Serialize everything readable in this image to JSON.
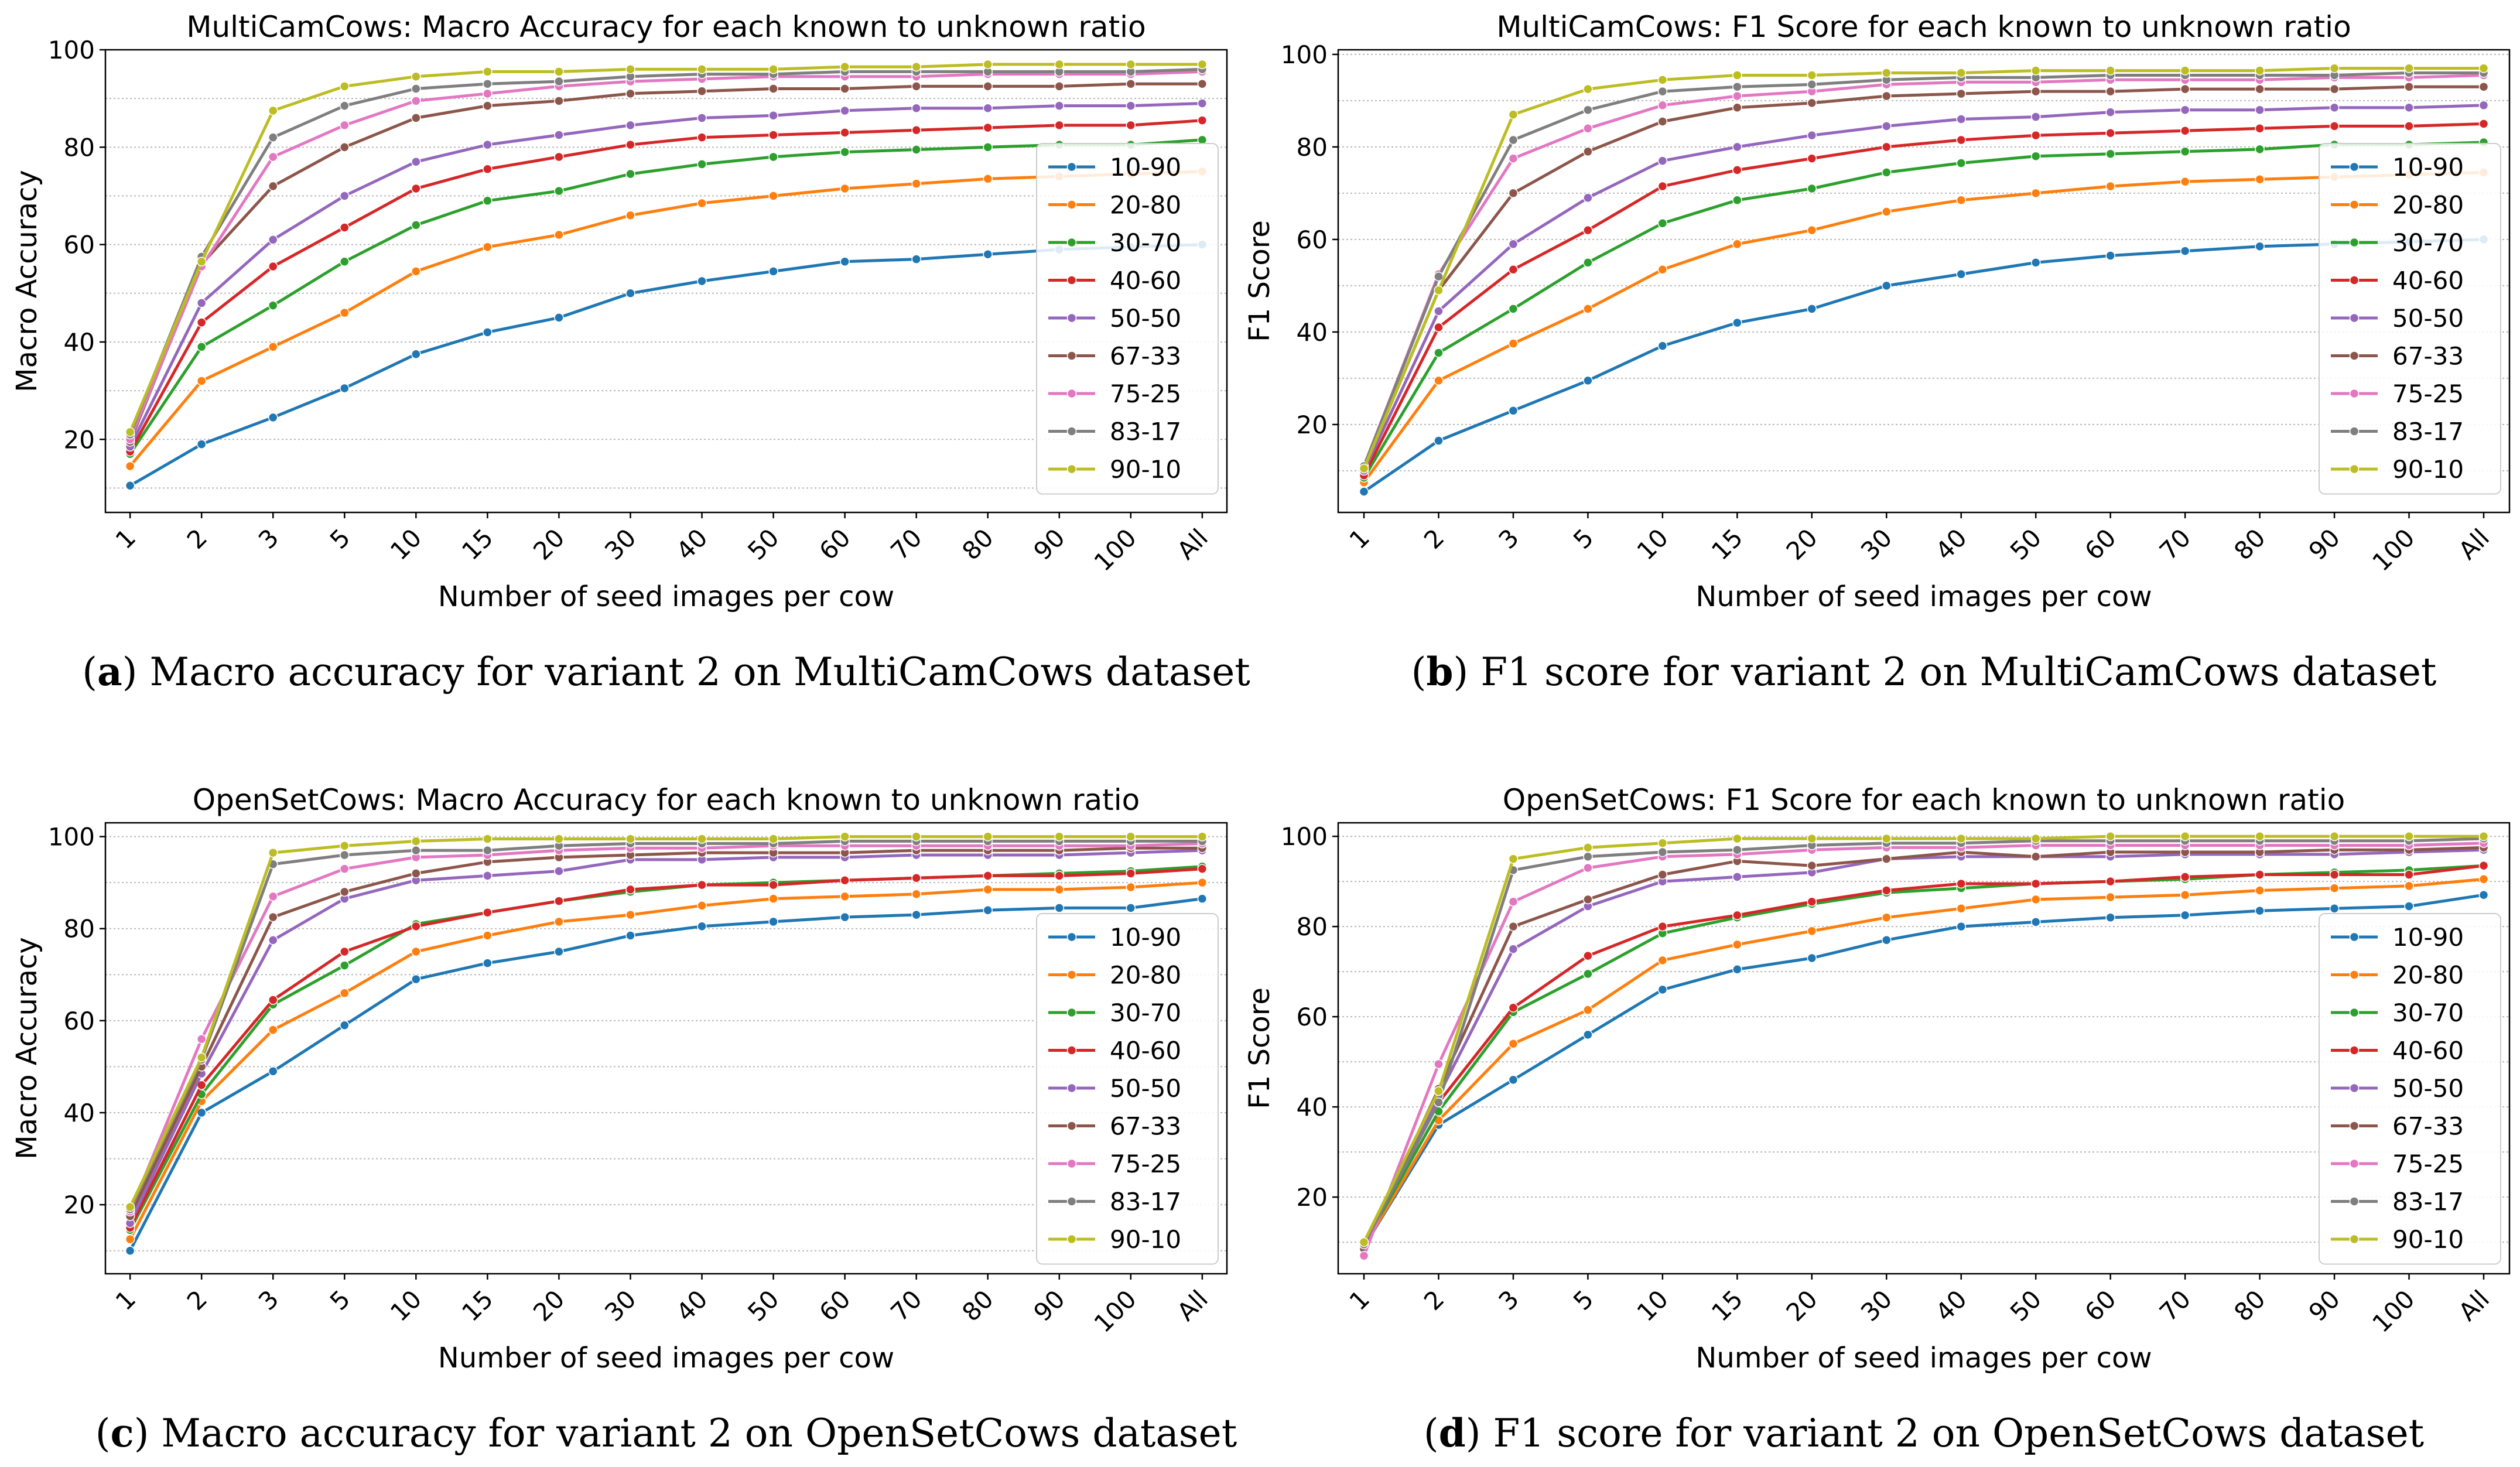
{
  "chart_data": [
    {
      "type": "line",
      "title": "MultiCamCows: Macro Accuracy for each known to unknown ratio",
      "xlabel": "Number of seed images per cow",
      "ylabel": "Macro Accuracy",
      "ylim": [
        5,
        100
      ],
      "yticks": [
        20,
        40,
        60,
        80,
        100
      ],
      "grid": "horizontal dotted",
      "legend": "right",
      "caption": {
        "label": "a",
        "text": "Macro accuracy for variant 2 on MultiCamCows dataset"
      },
      "categories": [
        "1",
        "2",
        "3",
        "5",
        "10",
        "15",
        "20",
        "30",
        "40",
        "50",
        "60",
        "70",
        "80",
        "90",
        "100",
        "All"
      ],
      "series": [
        {
          "name": "10-90",
          "color": "#1f77b4",
          "values": [
            10.5,
            19,
            24.5,
            30.5,
            37.5,
            42,
            45,
            50,
            52.5,
            54.5,
            56.5,
            57,
            58,
            59,
            59.5,
            60
          ]
        },
        {
          "name": "20-80",
          "color": "#ff7f0e",
          "values": [
            14.5,
            32,
            39,
            46,
            54.5,
            59.5,
            62,
            66,
            68.5,
            70,
            71.5,
            72.5,
            73.5,
            74,
            74.5,
            75
          ]
        },
        {
          "name": "30-70",
          "color": "#2ca02c",
          "values": [
            17,
            39,
            47.5,
            56.5,
            64,
            69,
            71,
            74.5,
            76.5,
            78,
            79,
            79.5,
            80,
            80.5,
            80.5,
            81.5
          ]
        },
        {
          "name": "40-60",
          "color": "#d62728",
          "values": [
            17.5,
            44,
            55.5,
            63.5,
            71.5,
            75.5,
            78,
            80.5,
            82,
            82.5,
            83,
            83.5,
            84,
            84.5,
            84.5,
            85.5
          ]
        },
        {
          "name": "50-50",
          "color": "#9467bd",
          "values": [
            18.5,
            48,
            61,
            70,
            77,
            80.5,
            82.5,
            84.5,
            86,
            86.5,
            87.5,
            88,
            88,
            88.5,
            88.5,
            89
          ]
        },
        {
          "name": "67-33",
          "color": "#8c564b",
          "values": [
            19.5,
            56,
            72,
            80,
            86,
            88.5,
            89.5,
            91,
            91.5,
            92,
            92,
            92.5,
            92.5,
            92.5,
            93,
            93
          ]
        },
        {
          "name": "75-25",
          "color": "#e377c2",
          "values": [
            20,
            55.5,
            78,
            84.5,
            89.5,
            91,
            92.5,
            93.5,
            94,
            94.5,
            94.5,
            94.5,
            95,
            95,
            95,
            95.5
          ]
        },
        {
          "name": "83-17",
          "color": "#7f7f7f",
          "values": [
            21,
            57.5,
            82,
            88.5,
            92,
            93,
            93.5,
            94.5,
            95,
            95,
            95.5,
            95.5,
            95.5,
            95.5,
            95.5,
            96
          ]
        },
        {
          "name": "90-10",
          "color": "#bcbd22",
          "values": [
            21.5,
            56.5,
            87.5,
            92.5,
            94.5,
            95.5,
            95.5,
            96,
            96,
            96,
            96.5,
            96.5,
            97,
            97,
            97,
            97
          ]
        }
      ]
    },
    {
      "type": "line",
      "title": "MultiCamCows: F1 Score for each known to unknown ratio",
      "xlabel": "Number of seed images per cow",
      "ylabel": "F1 Score",
      "ylim": [
        1,
        101
      ],
      "yticks": [
        20,
        40,
        60,
        80,
        100
      ],
      "grid": "horizontal dotted",
      "legend": "right",
      "caption": {
        "label": "b",
        "text": "F1 score for variant 2 on MultiCamCows dataset"
      },
      "categories": [
        "1",
        "2",
        "3",
        "5",
        "10",
        "15",
        "20",
        "30",
        "40",
        "50",
        "60",
        "70",
        "80",
        "90",
        "100",
        "All"
      ],
      "series": [
        {
          "name": "10-90",
          "color": "#1f77b4",
          "values": [
            5.5,
            16.5,
            23,
            29.5,
            37,
            42,
            45,
            50,
            52.5,
            55,
            56.5,
            57.5,
            58.5,
            59,
            59.5,
            60
          ]
        },
        {
          "name": "20-80",
          "color": "#ff7f0e",
          "values": [
            7.5,
            29.5,
            37.5,
            45,
            53.5,
            59,
            62,
            66,
            68.5,
            70,
            71.5,
            72.5,
            73,
            73.5,
            74,
            74.5
          ]
        },
        {
          "name": "30-70",
          "color": "#2ca02c",
          "values": [
            8.5,
            35.5,
            45,
            55,
            63.5,
            68.5,
            71,
            74.5,
            76.5,
            78,
            78.5,
            79,
            79.5,
            80.5,
            80.5,
            81
          ]
        },
        {
          "name": "40-60",
          "color": "#d62728",
          "values": [
            9,
            41,
            53.5,
            62,
            71.5,
            75,
            77.5,
            80,
            81.5,
            82.5,
            83,
            83.5,
            84,
            84.5,
            84.5,
            85
          ]
        },
        {
          "name": "50-50",
          "color": "#9467bd",
          "values": [
            10,
            44.5,
            59,
            69,
            77,
            80,
            82.5,
            84.5,
            86,
            86.5,
            87.5,
            88,
            88,
            88.5,
            88.5,
            89
          ]
        },
        {
          "name": "67-33",
          "color": "#8c564b",
          "values": [
            10.5,
            49,
            70,
            79,
            85.5,
            88.5,
            89.5,
            91,
            91.5,
            92,
            92,
            92.5,
            92.5,
            92.5,
            93,
            93
          ]
        },
        {
          "name": "75-25",
          "color": "#e377c2",
          "values": [
            11,
            52.5,
            77.5,
            84,
            89,
            91,
            92,
            93.5,
            94,
            94,
            94.5,
            94.5,
            94.5,
            95,
            95,
            95.5
          ]
        },
        {
          "name": "83-17",
          "color": "#7f7f7f",
          "values": [
            11,
            52,
            81.5,
            88,
            92,
            93,
            93.5,
            94.5,
            95,
            95,
            95.5,
            95.5,
            95.5,
            95.5,
            96,
            96
          ]
        },
        {
          "name": "90-10",
          "color": "#bcbd22",
          "values": [
            10.5,
            49,
            87,
            92.5,
            94.5,
            95.5,
            95.5,
            96,
            96,
            96.5,
            96.5,
            96.5,
            96.5,
            97,
            97,
            97
          ]
        }
      ]
    },
    {
      "type": "line",
      "title": "OpenSetCows: Macro Accuracy for each known to unknown ratio",
      "xlabel": "Number of seed images per cow",
      "ylabel": "Macro Accuracy",
      "ylim": [
        5,
        103
      ],
      "yticks": [
        20,
        40,
        60,
        80,
        100
      ],
      "grid": "horizontal dotted",
      "legend": "right",
      "caption": {
        "label": "c",
        "text": "Macro accuracy for variant 2 on OpenSetCows dataset"
      },
      "categories": [
        "1",
        "2",
        "3",
        "5",
        "10",
        "15",
        "20",
        "30",
        "40",
        "50",
        "60",
        "70",
        "80",
        "90",
        "100",
        "All"
      ],
      "series": [
        {
          "name": "10-90",
          "color": "#1f77b4",
          "values": [
            10,
            40,
            49,
            59,
            69,
            72.5,
            75,
            78.5,
            80.5,
            81.5,
            82.5,
            83,
            84,
            84.5,
            84.5,
            86.5
          ]
        },
        {
          "name": "20-80",
          "color": "#ff7f0e",
          "values": [
            12.5,
            42.5,
            58,
            66,
            75,
            78.5,
            81.5,
            83,
            85,
            86.5,
            87,
            87.5,
            88.5,
            88.5,
            89,
            90
          ]
        },
        {
          "name": "30-70",
          "color": "#2ca02c",
          "values": [
            14.5,
            44,
            63.5,
            72,
            81,
            83.5,
            86,
            88,
            89.5,
            90,
            90.5,
            91,
            91.5,
            92,
            92.5,
            93.5
          ]
        },
        {
          "name": "40-60",
          "color": "#d62728",
          "values": [
            15,
            46,
            64.5,
            75,
            80.5,
            83.5,
            86,
            88.5,
            89.5,
            89.5,
            90.5,
            91,
            91.5,
            91.5,
            92,
            93
          ]
        },
        {
          "name": "50-50",
          "color": "#9467bd",
          "values": [
            16,
            48.5,
            77.5,
            86.5,
            90.5,
            91.5,
            92.5,
            95,
            95,
            95.5,
            95.5,
            96,
            96,
            96,
            96.5,
            97
          ]
        },
        {
          "name": "67-33",
          "color": "#8c564b",
          "values": [
            17.5,
            50,
            82.5,
            88,
            92,
            94.5,
            95.5,
            96,
            96.5,
            96.5,
            96.5,
            97,
            97,
            97,
            97.5,
            97.5
          ]
        },
        {
          "name": "75-25",
          "color": "#e377c2",
          "values": [
            18.5,
            56,
            87,
            93,
            95.5,
            96,
            97,
            97.5,
            97.5,
            98,
            98,
            98,
            98,
            98,
            98,
            98.5
          ]
        },
        {
          "name": "83-17",
          "color": "#7f7f7f",
          "values": [
            19,
            51.5,
            94,
            96,
            97,
            97,
            98,
            98.5,
            98.5,
            98.5,
            99,
            99,
            99,
            99,
            99,
            99
          ]
        },
        {
          "name": "90-10",
          "color": "#bcbd22",
          "values": [
            19.5,
            52,
            96.5,
            98,
            99,
            99.5,
            99.5,
            99.5,
            99.5,
            99.5,
            100,
            100,
            100,
            100,
            100,
            100
          ]
        }
      ]
    },
    {
      "type": "line",
      "title": "OpenSetCows: F1 Score for each known to unknown ratio",
      "xlabel": "Number of seed images per cow",
      "ylabel": "F1 Score",
      "ylim": [
        3,
        103
      ],
      "yticks": [
        20,
        40,
        60,
        80,
        100
      ],
      "grid": "horizontal dotted",
      "legend": "right",
      "caption": {
        "label": "d",
        "text": "F1 score for variant 2 on OpenSetCows dataset"
      },
      "categories": [
        "1",
        "2",
        "3",
        "5",
        "10",
        "15",
        "20",
        "30",
        "40",
        "50",
        "60",
        "70",
        "80",
        "90",
        "100",
        "All"
      ],
      "series": [
        {
          "name": "10-90",
          "color": "#1f77b4",
          "values": [
            9,
            36,
            46,
            56,
            66,
            70.5,
            73,
            77,
            80,
            81,
            82,
            82.5,
            83.5,
            84,
            84.5,
            87
          ]
        },
        {
          "name": "20-80",
          "color": "#ff7f0e",
          "values": [
            9,
            37,
            54,
            61.5,
            72.5,
            76,
            79,
            82,
            84,
            86,
            86.5,
            87,
            88,
            88.5,
            89,
            90.5
          ]
        },
        {
          "name": "30-70",
          "color": "#2ca02c",
          "values": [
            9.5,
            39,
            61,
            69.5,
            78.5,
            82,
            85,
            87.5,
            88.5,
            89.5,
            90,
            90.5,
            91.5,
            92,
            92.5,
            93.5
          ]
        },
        {
          "name": "40-60",
          "color": "#d62728",
          "values": [
            9.5,
            41,
            62,
            73.5,
            80,
            82.5,
            85.5,
            88,
            89.5,
            89.5,
            90,
            91,
            91.5,
            91.5,
            91.5,
            93.5
          ]
        },
        {
          "name": "50-50",
          "color": "#9467bd",
          "values": [
            9,
            42.5,
            75,
            84.5,
            90,
            91,
            92,
            95,
            95.5,
            95.5,
            95.5,
            96,
            96,
            96,
            96.5,
            97
          ]
        },
        {
          "name": "67-33",
          "color": "#8c564b",
          "values": [
            8.5,
            44,
            80,
            86,
            91.5,
            94.5,
            93.5,
            95,
            96.5,
            95.5,
            96.5,
            96.5,
            96.5,
            97,
            97,
            97.5
          ]
        },
        {
          "name": "75-25",
          "color": "#e377c2",
          "values": [
            7,
            49.5,
            85.5,
            93,
            95.5,
            96,
            97,
            97.5,
            97.5,
            98,
            98,
            98,
            98,
            98,
            98,
            98.5
          ]
        },
        {
          "name": "83-17",
          "color": "#7f7f7f",
          "values": [
            9.5,
            41,
            92.5,
            95.5,
            96.5,
            97,
            98,
            98.5,
            98.5,
            99,
            99,
            99,
            99,
            99,
            99,
            99.5
          ]
        },
        {
          "name": "90-10",
          "color": "#bcbd22",
          "values": [
            10,
            43.5,
            95,
            97.5,
            98.5,
            99.5,
            99.5,
            99.5,
            99.5,
            99.5,
            100,
            100,
            100,
            100,
            100,
            100
          ]
        }
      ]
    }
  ]
}
